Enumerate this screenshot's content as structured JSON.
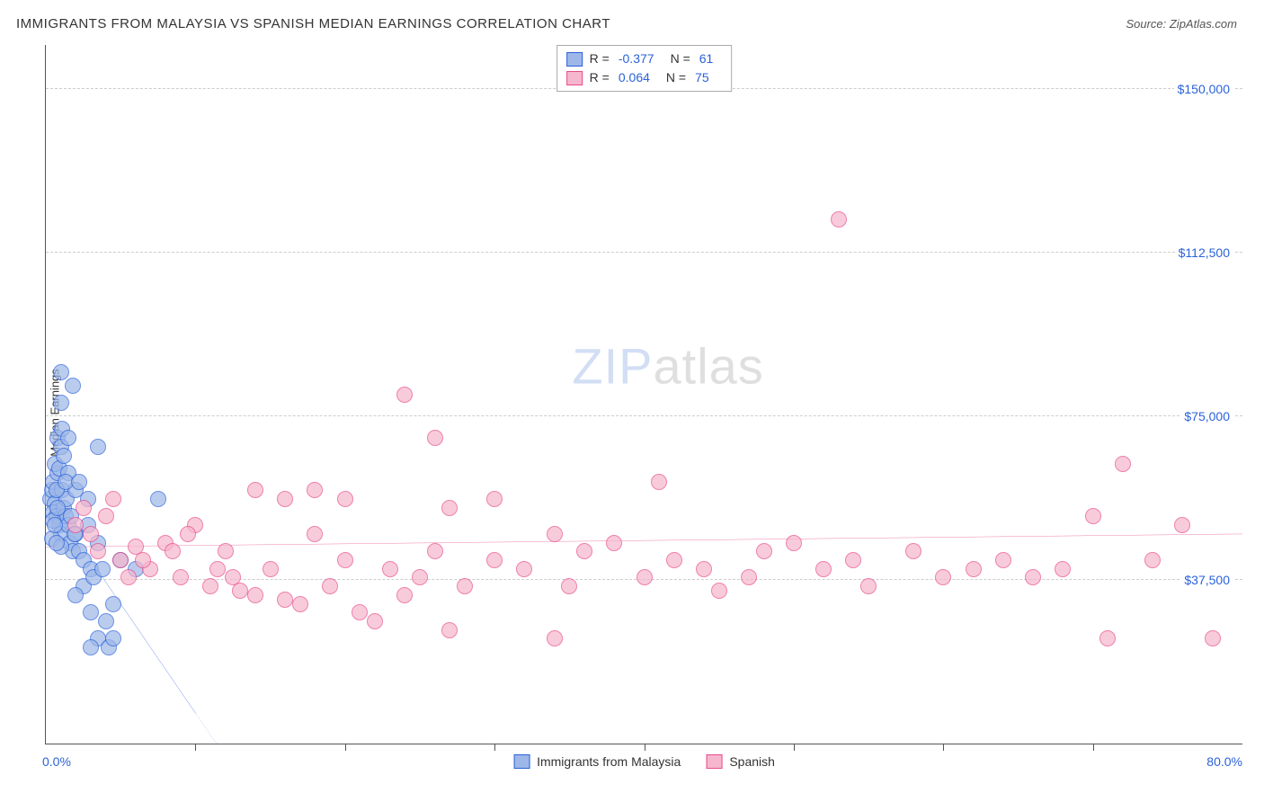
{
  "header": {
    "title": "IMMIGRANTS FROM MALAYSIA VS SPANISH MEDIAN EARNINGS CORRELATION CHART",
    "source_label": "Source: ",
    "source_value": "ZipAtlas.com"
  },
  "watermark": {
    "zip": "ZIP",
    "atlas": "atlas"
  },
  "chart": {
    "type": "scatter",
    "ylabel": "Median Earnings",
    "xlim": [
      0,
      80
    ],
    "ylim": [
      0,
      160000
    ],
    "x_axis_min_label": "0.0%",
    "x_axis_max_label": "80.0%",
    "x_tick_positions": [
      10,
      20,
      30,
      40,
      50,
      60,
      70
    ],
    "y_gridlines": [
      {
        "value": 37500,
        "label": "$37,500"
      },
      {
        "value": 75000,
        "label": "$75,000"
      },
      {
        "value": 112500,
        "label": "$112,500"
      },
      {
        "value": 150000,
        "label": "$150,000"
      }
    ],
    "background_color": "#ffffff",
    "grid_color": "#cccccc",
    "axis_color": "#555555",
    "ytick_label_color": "#2b62d9",
    "xtick_label_color": "#2b62d9",
    "point_radius": 9,
    "point_fill_opacity": 0.35,
    "series": [
      {
        "name": "Immigrants from Malaysia",
        "color_stroke": "#2b62d9",
        "color_fill": "#9db7e8",
        "r_value": "-0.377",
        "n_value": "61",
        "trend": {
          "x1": 0,
          "y1": 57000,
          "x2": 10,
          "y2": 7000,
          "dash_extend_x": 14
        },
        "points": [
          [
            0.3,
            56000
          ],
          [
            0.4,
            58000
          ],
          [
            0.5,
            60000
          ],
          [
            0.6,
            55000
          ],
          [
            0.5,
            53000
          ],
          [
            0.7,
            52000
          ],
          [
            0.8,
            62000
          ],
          [
            0.9,
            50000
          ],
          [
            1.0,
            48000
          ],
          [
            0.6,
            64000
          ],
          [
            1.1,
            58000
          ],
          [
            1.2,
            54000
          ],
          [
            0.4,
            47000
          ],
          [
            0.8,
            70000
          ],
          [
            1.0,
            68000
          ],
          [
            1.3,
            52000
          ],
          [
            1.5,
            50000
          ],
          [
            1.4,
            56000
          ],
          [
            1.6,
            46000
          ],
          [
            1.0,
            85000
          ],
          [
            1.8,
            44000
          ],
          [
            0.9,
            63000
          ],
          [
            1.2,
            66000
          ],
          [
            2.0,
            48000
          ],
          [
            0.7,
            58000
          ],
          [
            1.5,
            62000
          ],
          [
            2.2,
            44000
          ],
          [
            2.5,
            42000
          ],
          [
            0.5,
            51000
          ],
          [
            2.0,
            58000
          ],
          [
            2.8,
            50000
          ],
          [
            3.0,
            40000
          ],
          [
            1.1,
            72000
          ],
          [
            3.5,
            46000
          ],
          [
            1.8,
            82000
          ],
          [
            1.3,
            60000
          ],
          [
            2.5,
            36000
          ],
          [
            3.2,
            38000
          ],
          [
            1.0,
            45000
          ],
          [
            3.8,
            40000
          ],
          [
            2.0,
            34000
          ],
          [
            4.5,
            32000
          ],
          [
            3.0,
            30000
          ],
          [
            4.0,
            28000
          ],
          [
            3.5,
            24000
          ],
          [
            4.2,
            22000
          ],
          [
            1.5,
            70000
          ],
          [
            5.0,
            42000
          ],
          [
            2.2,
            60000
          ],
          [
            0.8,
            54000
          ],
          [
            1.7,
            52000
          ],
          [
            6.0,
            40000
          ],
          [
            2.8,
            56000
          ],
          [
            1.0,
            78000
          ],
          [
            3.5,
            68000
          ],
          [
            0.6,
            50000
          ],
          [
            1.9,
            48000
          ],
          [
            4.5,
            24000
          ],
          [
            3.0,
            22000
          ],
          [
            7.5,
            56000
          ],
          [
            0.7,
            46000
          ]
        ]
      },
      {
        "name": "Spanish",
        "color_stroke": "#e84b8a",
        "color_fill": "#f6b6cd",
        "r_value": "0.064",
        "n_value": "75",
        "trend": {
          "x1": 0,
          "y1": 45000,
          "x2": 80,
          "y2": 48000
        },
        "points": [
          [
            2,
            50000
          ],
          [
            3,
            48000
          ],
          [
            4,
            52000
          ],
          [
            5,
            42000
          ],
          [
            6,
            45000
          ],
          [
            7,
            40000
          ],
          [
            8,
            46000
          ],
          [
            9,
            38000
          ],
          [
            10,
            50000
          ],
          [
            11,
            36000
          ],
          [
            12,
            44000
          ],
          [
            13,
            35000
          ],
          [
            14,
            34000
          ],
          [
            15,
            40000
          ],
          [
            16,
            33000
          ],
          [
            17,
            32000
          ],
          [
            18,
            48000
          ],
          [
            19,
            36000
          ],
          [
            20,
            42000
          ],
          [
            21,
            30000
          ],
          [
            22,
            28000
          ],
          [
            14,
            58000
          ],
          [
            16,
            56000
          ],
          [
            23,
            40000
          ],
          [
            24,
            34000
          ],
          [
            25,
            38000
          ],
          [
            24,
            80000
          ],
          [
            26,
            44000
          ],
          [
            27,
            26000
          ],
          [
            28,
            36000
          ],
          [
            18,
            58000
          ],
          [
            30,
            42000
          ],
          [
            32,
            40000
          ],
          [
            34,
            48000
          ],
          [
            35,
            36000
          ],
          [
            36,
            44000
          ],
          [
            34,
            24000
          ],
          [
            38,
            46000
          ],
          [
            40,
            38000
          ],
          [
            41,
            60000
          ],
          [
            42,
            42000
          ],
          [
            44,
            40000
          ],
          [
            45,
            35000
          ],
          [
            48,
            44000
          ],
          [
            50,
            46000
          ],
          [
            47,
            38000
          ],
          [
            52,
            40000
          ],
          [
            53,
            120000
          ],
          [
            55,
            36000
          ],
          [
            54,
            42000
          ],
          [
            58,
            44000
          ],
          [
            60,
            38000
          ],
          [
            62,
            40000
          ],
          [
            30,
            56000
          ],
          [
            64,
            42000
          ],
          [
            66,
            38000
          ],
          [
            72,
            64000
          ],
          [
            68,
            40000
          ],
          [
            70,
            52000
          ],
          [
            71,
            24000
          ],
          [
            76,
            50000
          ],
          [
            78,
            24000
          ],
          [
            74,
            42000
          ],
          [
            2.5,
            54000
          ],
          [
            3.5,
            44000
          ],
          [
            4.5,
            56000
          ],
          [
            5.5,
            38000
          ],
          [
            6.5,
            42000
          ],
          [
            20,
            56000
          ],
          [
            8.5,
            44000
          ],
          [
            9.5,
            48000
          ],
          [
            26,
            70000
          ],
          [
            11.5,
            40000
          ],
          [
            12.5,
            38000
          ],
          [
            27,
            54000
          ]
        ]
      }
    ],
    "legend_top_labels": {
      "r": "R =",
      "n": "N ="
    },
    "legend_bottom": [
      {
        "label": "Immigrants from Malaysia",
        "fill": "#9db7e8",
        "stroke": "#2b62d9"
      },
      {
        "label": "Spanish",
        "fill": "#f6b6cd",
        "stroke": "#e84b8a"
      }
    ]
  }
}
